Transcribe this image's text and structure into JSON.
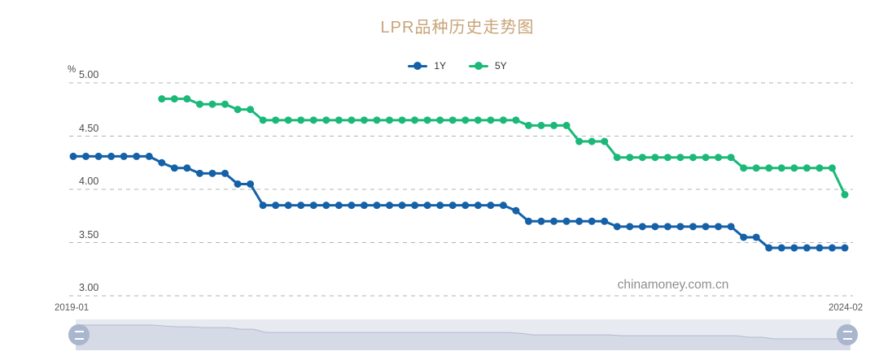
{
  "title": {
    "text": "LPR品种历史走势图",
    "color": "#C8A478"
  },
  "legend": [
    {
      "label": "1Y",
      "color": "#1561A8"
    },
    {
      "label": "5Y",
      "color": "#1BB978"
    }
  ],
  "watermark": "chinamoney.com.cn",
  "axes": {
    "y_unit": "%",
    "y_ticks": [
      "5.00",
      "4.50",
      "4.00",
      "3.50",
      "3.00"
    ],
    "x_start_label": "2019-01",
    "x_end_label": "2024-02"
  },
  "chart_data": {
    "type": "line",
    "title": "LPR品种历史走势图",
    "xlabel": "",
    "ylabel": "%",
    "x_unit": "month",
    "x_range": [
      "2019-01",
      "2024-02"
    ],
    "n_months": 62,
    "ylim": [
      3.0,
      5.0
    ],
    "y_ticks": [
      5.0,
      4.5,
      4.0,
      3.5,
      3.0
    ],
    "grid": "dashed-horizontal",
    "legend_position": "top-center",
    "series": [
      {
        "name": "1Y",
        "color": "#1561A8",
        "start": "2019-01",
        "start_index": 0,
        "values": [
          4.31,
          4.31,
          4.31,
          4.31,
          4.31,
          4.31,
          4.31,
          4.25,
          4.2,
          4.2,
          4.15,
          4.15,
          4.15,
          4.05,
          4.05,
          3.85,
          3.85,
          3.85,
          3.85,
          3.85,
          3.85,
          3.85,
          3.85,
          3.85,
          3.85,
          3.85,
          3.85,
          3.85,
          3.85,
          3.85,
          3.85,
          3.85,
          3.85,
          3.85,
          3.85,
          3.8,
          3.7,
          3.7,
          3.7,
          3.7,
          3.7,
          3.7,
          3.7,
          3.65,
          3.65,
          3.65,
          3.65,
          3.65,
          3.65,
          3.65,
          3.65,
          3.65,
          3.65,
          3.55,
          3.55,
          3.45,
          3.45,
          3.45,
          3.45,
          3.45,
          3.45,
          3.45
        ]
      },
      {
        "name": "5Y",
        "color": "#1BB978",
        "start": "2019-08",
        "start_index": 7,
        "values": [
          4.85,
          4.85,
          4.85,
          4.8,
          4.8,
          4.8,
          4.75,
          4.75,
          4.65,
          4.65,
          4.65,
          4.65,
          4.65,
          4.65,
          4.65,
          4.65,
          4.65,
          4.65,
          4.65,
          4.65,
          4.65,
          4.65,
          4.65,
          4.65,
          4.65,
          4.65,
          4.65,
          4.65,
          4.65,
          4.6,
          4.6,
          4.6,
          4.6,
          4.45,
          4.45,
          4.45,
          4.3,
          4.3,
          4.3,
          4.3,
          4.3,
          4.3,
          4.3,
          4.3,
          4.3,
          4.3,
          4.2,
          4.2,
          4.2,
          4.2,
          4.2,
          4.2,
          4.2,
          4.2,
          3.95
        ]
      }
    ]
  },
  "datazoom": {
    "track_color": "#e7eaf1",
    "shadow_fill": "#d5dae6",
    "shadow_line": "#b2bbcc",
    "handle_color": "#a9b6cd",
    "handle_icon": "drag-handle"
  }
}
